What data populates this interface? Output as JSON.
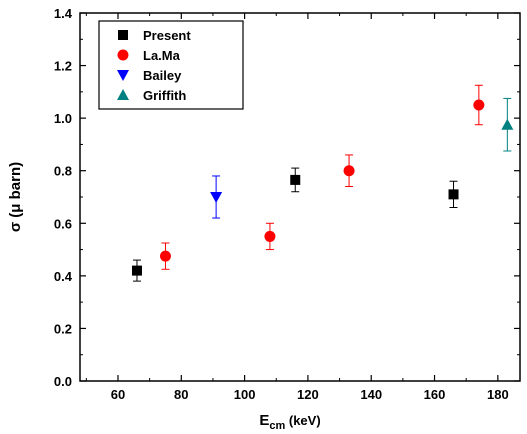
{
  "chart_data": {
    "type": "scatter",
    "title": "",
    "xlabel": {
      "main": "E",
      "sub": "cm",
      "unit": "(keV)"
    },
    "ylabel": "σ (μ barn)",
    "xlim": [
      48,
      187
    ],
    "ylim": [
      0.0,
      1.4
    ],
    "xticks": [
      60,
      80,
      100,
      120,
      140,
      160,
      180
    ],
    "yticks": [
      0.0,
      0.2,
      0.4,
      0.6,
      0.8,
      1.0,
      1.2,
      1.4
    ],
    "xtick_labels": [
      "60",
      "80",
      "100",
      "120",
      "140",
      "160",
      "180"
    ],
    "ytick_labels": [
      "0.0",
      "0.2",
      "0.4",
      "0.6",
      "0.8",
      "1.0",
      "1.2",
      "1.4"
    ],
    "grid": false,
    "legend_position": "top-left",
    "series": [
      {
        "name": "Present",
        "marker": "square",
        "color": "#000000",
        "points": [
          {
            "x": 66,
            "y": 0.42,
            "err": 0.04
          },
          {
            "x": 116,
            "y": 0.765,
            "err": 0.045
          },
          {
            "x": 166,
            "y": 0.71,
            "err": 0.05
          }
        ]
      },
      {
        "name": "La.Ma",
        "marker": "circle",
        "color": "#ff0000",
        "points": [
          {
            "x": 75,
            "y": 0.475,
            "err": 0.05
          },
          {
            "x": 108,
            "y": 0.55,
            "err": 0.05
          },
          {
            "x": 133,
            "y": 0.8,
            "err": 0.06
          },
          {
            "x": 174,
            "y": 1.05,
            "err": 0.075
          }
        ]
      },
      {
        "name": "Bailey",
        "marker": "triangle-down",
        "color": "#0000ff",
        "points": [
          {
            "x": 91,
            "y": 0.7,
            "err": 0.08
          }
        ]
      },
      {
        "name": "Griffith",
        "marker": "triangle-up",
        "color": "#008080",
        "points": [
          {
            "x": 183,
            "y": 0.975,
            "err": 0.1
          }
        ]
      }
    ]
  }
}
